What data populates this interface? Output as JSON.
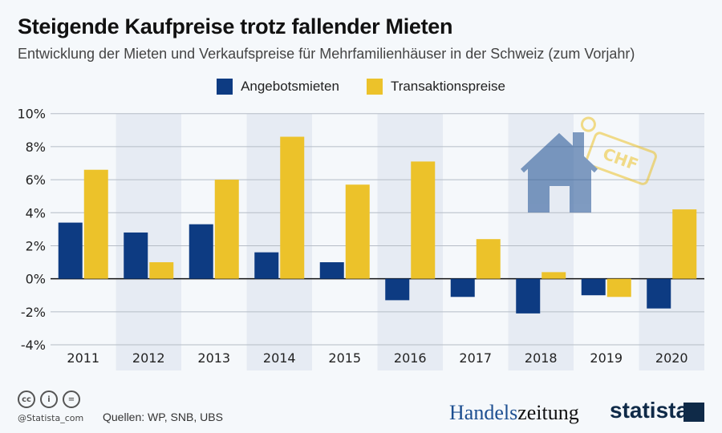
{
  "header": {
    "title": "Steigende Kaufpreise trotz fallender Mieten",
    "subtitle": "Entwicklung der Mieten und Verkaufspreise für Mehrfamilienhäuser in der Schweiz (zum Vorjahr)"
  },
  "chart_data": {
    "type": "bar",
    "title": "Steigende Kaufpreise trotz fallender Mieten",
    "subtitle": "Entwicklung der Mieten und Verkaufspreise für Mehrfamilienhäuser in der Schweiz (zum Vorjahr)",
    "categories": [
      "2011",
      "2012",
      "2013",
      "2014",
      "2015",
      "2016",
      "2017",
      "2018",
      "2019",
      "2020"
    ],
    "series": [
      {
        "name": "Angebotsmieten",
        "color": "#0d3b82",
        "values": [
          3.4,
          2.8,
          3.3,
          1.6,
          1.0,
          -1.3,
          -1.1,
          -2.1,
          -1.0,
          -1.8
        ]
      },
      {
        "name": "Transaktionspreise",
        "color": "#ecc22a",
        "values": [
          6.6,
          1.0,
          6.0,
          8.6,
          5.7,
          7.1,
          2.4,
          0.4,
          -1.1,
          4.2
        ]
      }
    ],
    "ylim": [
      -4,
      10
    ],
    "yticks": [
      "10%",
      "8%",
      "6%",
      "4%",
      "2%",
      "0%",
      "-2%",
      "-4%"
    ],
    "ytick_values": [
      10,
      8,
      6,
      4,
      2,
      0,
      -2,
      -4
    ],
    "grid": true,
    "legend": "top-center",
    "xlabel": "",
    "ylabel": ""
  },
  "illustration": {
    "icon": "house-with-price-tag-icon",
    "tag_text": "CHF"
  },
  "footer": {
    "handle": "@Statista_com",
    "source": "Quellen: WP, SNB, UBS",
    "logo1a": "Handels",
    "logo1b": "zeitung",
    "logo2": "statista"
  }
}
